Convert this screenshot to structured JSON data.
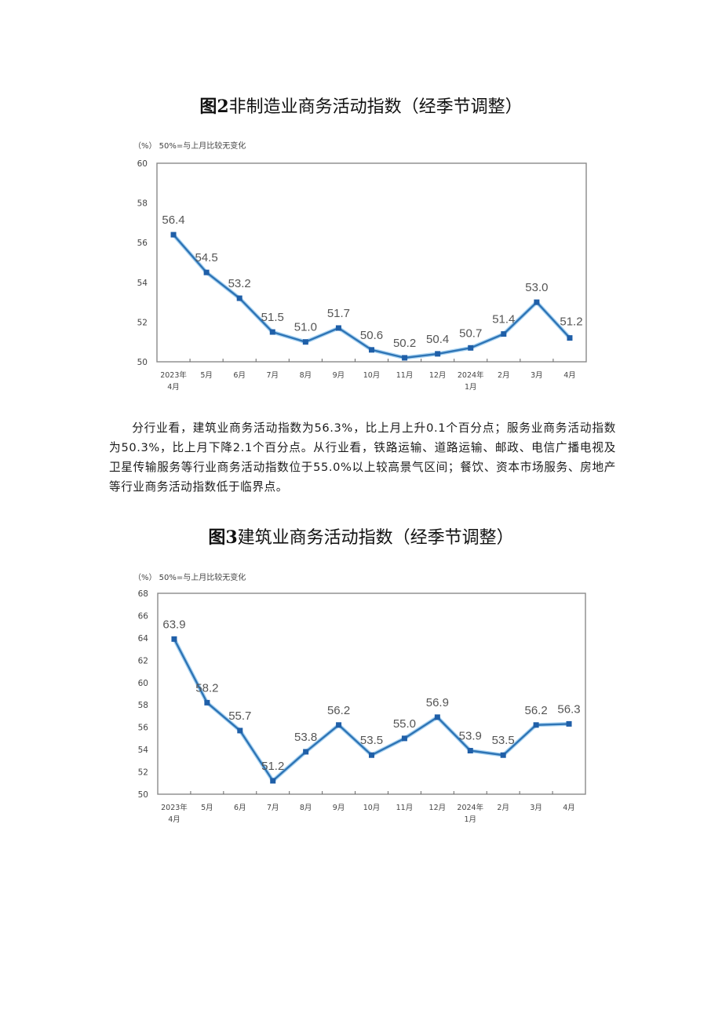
{
  "figure2": {
    "title_prefix": "图2",
    "title_rest": "非制造业商务活动指数（经季节调整）",
    "unit_label": "（%）",
    "note": "50%=与上月比较无变化"
  },
  "paragraph": {
    "text": "分行业看，建筑业商务活动指数为56.3%，比上月上升0.1个百分点；服务业商务活动指数为50.3%，比上月下降2.1个百分点。从行业看，铁路运输、道路运输、邮政、电信广播电视及卫星传输服务等行业商务活动指数位于55.0%以上较高景气区间；餐饮、资本市场服务、房地产等行业商务活动指数低于临界点。"
  },
  "figure3": {
    "title_prefix": "图3",
    "title_rest": "建筑业商务活动指数（经季节调整）",
    "unit_label": "（%）",
    "note": "50%=与上月比较无变化"
  },
  "chart_data": [
    {
      "type": "line",
      "title": "图2非制造业商务活动指数（经季节调整）",
      "xlabel": "",
      "ylabel": "（%）",
      "note": "50%=与上月比较无变化",
      "categories": [
        "2023年4月",
        "5月",
        "6月",
        "7月",
        "8月",
        "9月",
        "10月",
        "11月",
        "12月",
        "2024年1月",
        "2月",
        "3月",
        "4月"
      ],
      "category_lines": [
        [
          "2023年",
          "4月"
        ],
        [
          "5月"
        ],
        [
          "6月"
        ],
        [
          "7月"
        ],
        [
          "8月"
        ],
        [
          "9月"
        ],
        [
          "10月"
        ],
        [
          "11月"
        ],
        [
          "12月"
        ],
        [
          "2024年",
          "1月"
        ],
        [
          "2月"
        ],
        [
          "3月"
        ],
        [
          "4月"
        ]
      ],
      "values": [
        56.4,
        54.5,
        53.2,
        51.5,
        51.0,
        51.7,
        50.6,
        50.2,
        50.4,
        50.7,
        51.4,
        53.0,
        51.2
      ],
      "ylim": [
        50,
        60
      ],
      "yticks": [
        50,
        52,
        54,
        56,
        58,
        60
      ],
      "grid": false,
      "legend": "none",
      "line_color": "#2e74b5"
    },
    {
      "type": "line",
      "title": "图3建筑业商务活动指数（经季节调整）",
      "xlabel": "",
      "ylabel": "（%）",
      "note": "50%=与上月比较无变化",
      "categories": [
        "2023年4月",
        "5月",
        "6月",
        "7月",
        "8月",
        "9月",
        "10月",
        "11月",
        "12月",
        "2024年1月",
        "2月",
        "3月",
        "4月"
      ],
      "category_lines": [
        [
          "2023年",
          "4月"
        ],
        [
          "5月"
        ],
        [
          "6月"
        ],
        [
          "7月"
        ],
        [
          "8月"
        ],
        [
          "9月"
        ],
        [
          "10月"
        ],
        [
          "11月"
        ],
        [
          "12月"
        ],
        [
          "2024年",
          "1月"
        ],
        [
          "2月"
        ],
        [
          "3月"
        ],
        [
          "4月"
        ]
      ],
      "values": [
        63.9,
        58.2,
        55.7,
        51.2,
        53.8,
        56.2,
        53.5,
        55.0,
        56.9,
        53.9,
        53.5,
        56.2,
        56.3
      ],
      "ylim": [
        50,
        68
      ],
      "yticks": [
        50,
        52,
        54,
        56,
        58,
        60,
        62,
        64,
        66,
        68
      ],
      "grid": false,
      "legend": "none",
      "line_color": "#2e74b5"
    }
  ]
}
